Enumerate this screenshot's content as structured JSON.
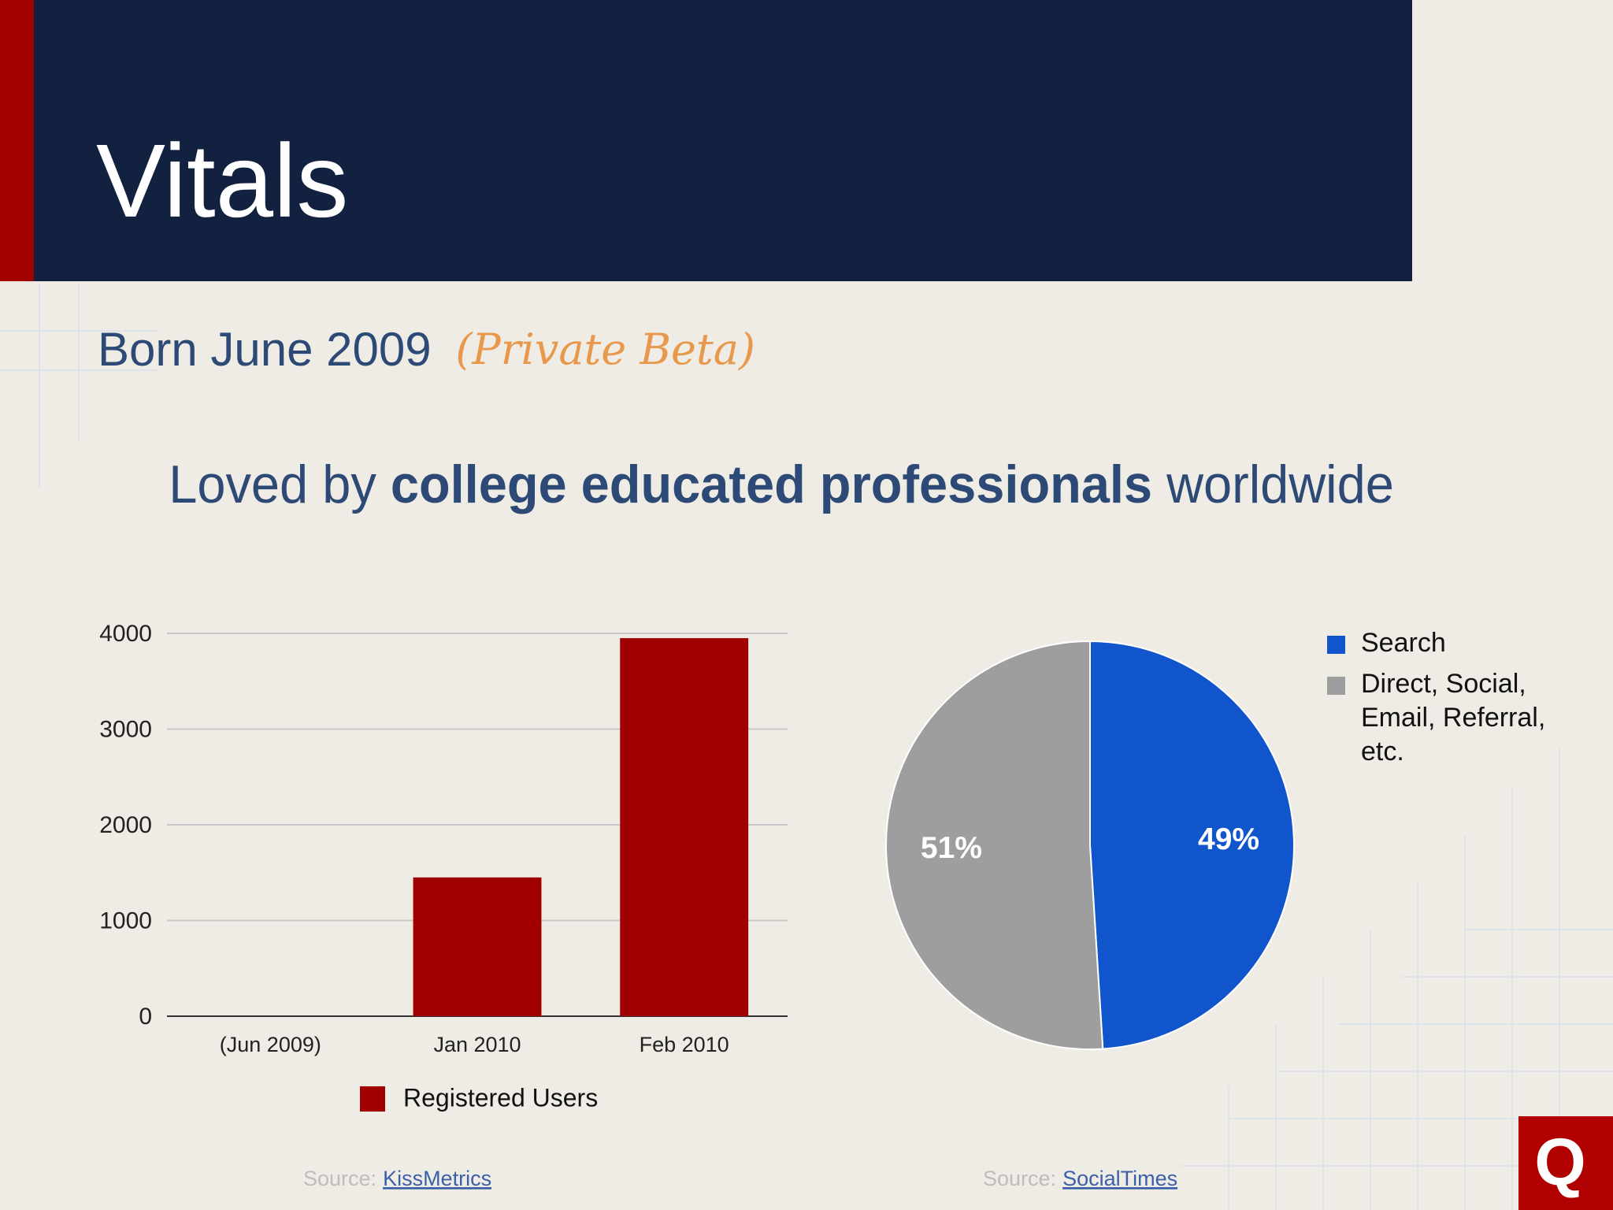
{
  "slide": {
    "title": "Vitals",
    "subtitle": "Born June 2009",
    "subtitle_note": "(Private Beta)",
    "tagline": [
      "Loved by ",
      "college educated professionals",
      " worldwide"
    ],
    "logo": "Q"
  },
  "chart_data": [
    {
      "type": "bar",
      "categories": [
        "(Jun 2009)",
        "Jan 2010",
        "Feb 2010"
      ],
      "series": [
        {
          "name": "Registered Users",
          "color": "#a00000",
          "values": [
            0,
            1450,
            3950
          ]
        }
      ],
      "ylim": [
        0,
        4000
      ],
      "yticks": [
        0,
        1000,
        2000,
        3000,
        4000
      ],
      "grid": true,
      "source_prefix": "Source:",
      "source": "KissMetrics"
    },
    {
      "type": "pie",
      "categories": [
        "Search",
        "Direct, Social, Email, Referral, etc."
      ],
      "values": [
        49,
        51
      ],
      "value_labels": [
        "49%",
        "51%"
      ],
      "colors": [
        "#1155cc",
        "#9e9e9e"
      ],
      "legend": "right",
      "source_prefix": "Source:",
      "source": "SocialTimes"
    }
  ]
}
